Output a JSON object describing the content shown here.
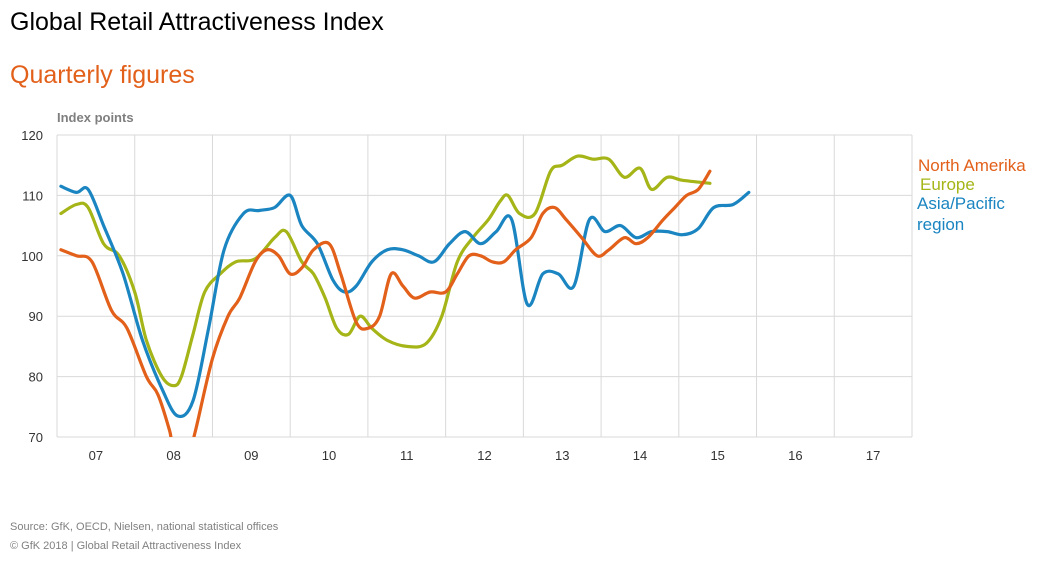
{
  "title": "Global Retail Attractiveness Index",
  "subtitle": "Quarterly figures",
  "footer": {
    "source": "Source: GfK, OECD,  Nielsen, national statistical offices",
    "copyright": "© GfK 2018 | Global Retail Attractiveness Index"
  },
  "colors": {
    "north_america": "#e2601a",
    "europe": "#a5b518",
    "asia_pacific": "#1a85c1",
    "subtitle": "#e2601a",
    "grid": "#d9d9d9"
  },
  "chart_data": {
    "type": "line",
    "title": "Global Retail Attractiveness Index",
    "subtitle": "Quarterly figures",
    "ylabel": "Index points",
    "xlabel": "",
    "ylim": [
      70,
      120
    ],
    "yticks": [
      70,
      80,
      90,
      100,
      110,
      120
    ],
    "categories": [
      "07",
      "08",
      "09",
      "10",
      "11",
      "12",
      "13",
      "14",
      "15",
      "16",
      "17"
    ],
    "grid": "both",
    "legend_placement": "right, at line ends",
    "x_unit": "year (quarterly points)",
    "x_range": [
      2007.0,
      2018.0
    ],
    "series": [
      {
        "name": "North Amerika",
        "color": "#e2601a",
        "points": [
          [
            2007.05,
            101
          ],
          [
            2007.25,
            100
          ],
          [
            2007.45,
            99
          ],
          [
            2007.7,
            91
          ],
          [
            2007.9,
            88
          ],
          [
            2008.15,
            80
          ],
          [
            2008.3,
            77
          ],
          [
            2008.45,
            71
          ],
          [
            2008.5,
            68
          ],
          [
            2008.7,
            68
          ],
          [
            2008.78,
            71
          ],
          [
            2009.0,
            83
          ],
          [
            2009.2,
            90
          ],
          [
            2009.35,
            93
          ],
          [
            2009.55,
            99
          ],
          [
            2009.7,
            101
          ],
          [
            2009.85,
            100
          ],
          [
            2010.0,
            97
          ],
          [
            2010.15,
            98
          ],
          [
            2010.3,
            101
          ],
          [
            2010.5,
            102
          ],
          [
            2010.65,
            97
          ],
          [
            2010.85,
            89
          ],
          [
            2011.0,
            88
          ],
          [
            2011.15,
            90
          ],
          [
            2011.3,
            97
          ],
          [
            2011.45,
            95
          ],
          [
            2011.6,
            93
          ],
          [
            2011.8,
            94
          ],
          [
            2012.0,
            94
          ],
          [
            2012.15,
            97
          ],
          [
            2012.3,
            100
          ],
          [
            2012.45,
            100
          ],
          [
            2012.6,
            99
          ],
          [
            2012.75,
            99
          ],
          [
            2012.9,
            101
          ],
          [
            2013.1,
            103
          ],
          [
            2013.25,
            107
          ],
          [
            2013.4,
            108
          ],
          [
            2013.55,
            106
          ],
          [
            2013.75,
            103
          ],
          [
            2013.95,
            100
          ],
          [
            2014.1,
            101
          ],
          [
            2014.3,
            103
          ],
          [
            2014.45,
            102
          ],
          [
            2014.6,
            103
          ],
          [
            2014.8,
            106
          ],
          [
            2014.95,
            108
          ],
          [
            2015.1,
            110
          ],
          [
            2015.25,
            111
          ],
          [
            2015.4,
            114
          ]
        ]
      },
      {
        "name": "Europe",
        "color": "#a5b518",
        "points": [
          [
            2007.05,
            107
          ],
          [
            2007.25,
            108.5
          ],
          [
            2007.4,
            108
          ],
          [
            2007.6,
            102
          ],
          [
            2007.8,
            100
          ],
          [
            2008.0,
            94
          ],
          [
            2008.15,
            86
          ],
          [
            2008.35,
            80
          ],
          [
            2008.5,
            78.5
          ],
          [
            2008.6,
            80
          ],
          [
            2008.75,
            87
          ],
          [
            2008.9,
            94
          ],
          [
            2009.1,
            97
          ],
          [
            2009.3,
            99
          ],
          [
            2009.55,
            99.5
          ],
          [
            2009.8,
            103
          ],
          [
            2009.95,
            104
          ],
          [
            2010.15,
            99
          ],
          [
            2010.3,
            97
          ],
          [
            2010.45,
            93
          ],
          [
            2010.6,
            88
          ],
          [
            2010.75,
            87
          ],
          [
            2010.9,
            90
          ],
          [
            2011.05,
            88
          ],
          [
            2011.25,
            86
          ],
          [
            2011.5,
            85
          ],
          [
            2011.75,
            85.5
          ],
          [
            2011.95,
            90
          ],
          [
            2012.15,
            99
          ],
          [
            2012.35,
            103
          ],
          [
            2012.55,
            106
          ],
          [
            2012.7,
            109
          ],
          [
            2012.8,
            110
          ],
          [
            2012.95,
            107
          ],
          [
            2013.15,
            107
          ],
          [
            2013.35,
            114
          ],
          [
            2013.5,
            115
          ],
          [
            2013.7,
            116.5
          ],
          [
            2013.9,
            116
          ],
          [
            2014.1,
            116
          ],
          [
            2014.3,
            113
          ],
          [
            2014.5,
            114.5
          ],
          [
            2014.65,
            111
          ],
          [
            2014.85,
            113
          ],
          [
            2015.05,
            112.5
          ],
          [
            2015.4,
            112
          ]
        ]
      },
      {
        "name": "Asia/Pacific\nregion",
        "color": "#1a85c1",
        "points": [
          [
            2007.05,
            111.5
          ],
          [
            2007.25,
            110.5
          ],
          [
            2007.4,
            111
          ],
          [
            2007.6,
            105
          ],
          [
            2007.85,
            97
          ],
          [
            2008.1,
            86
          ],
          [
            2008.35,
            78
          ],
          [
            2008.55,
            73.5
          ],
          [
            2008.75,
            76
          ],
          [
            2008.95,
            88
          ],
          [
            2009.15,
            101
          ],
          [
            2009.4,
            107
          ],
          [
            2009.6,
            107.5
          ],
          [
            2009.8,
            108
          ],
          [
            2010.0,
            110
          ],
          [
            2010.15,
            105
          ],
          [
            2010.35,
            102
          ],
          [
            2010.55,
            96
          ],
          [
            2010.7,
            94
          ],
          [
            2010.85,
            95
          ],
          [
            2011.05,
            99
          ],
          [
            2011.25,
            101
          ],
          [
            2011.45,
            101
          ],
          [
            2011.65,
            100
          ],
          [
            2011.85,
            99
          ],
          [
            2012.05,
            102
          ],
          [
            2012.25,
            104
          ],
          [
            2012.45,
            102
          ],
          [
            2012.65,
            104
          ],
          [
            2012.85,
            106
          ],
          [
            2013.05,
            92
          ],
          [
            2013.25,
            97
          ],
          [
            2013.45,
            97
          ],
          [
            2013.65,
            95
          ],
          [
            2013.85,
            106
          ],
          [
            2014.05,
            104
          ],
          [
            2014.25,
            105
          ],
          [
            2014.45,
            103
          ],
          [
            2014.65,
            104
          ],
          [
            2014.85,
            104
          ],
          [
            2015.05,
            103.5
          ],
          [
            2015.25,
            104.5
          ],
          [
            2015.45,
            108
          ],
          [
            2015.7,
            108.5
          ],
          [
            2015.9,
            110.5
          ]
        ]
      }
    ]
  }
}
